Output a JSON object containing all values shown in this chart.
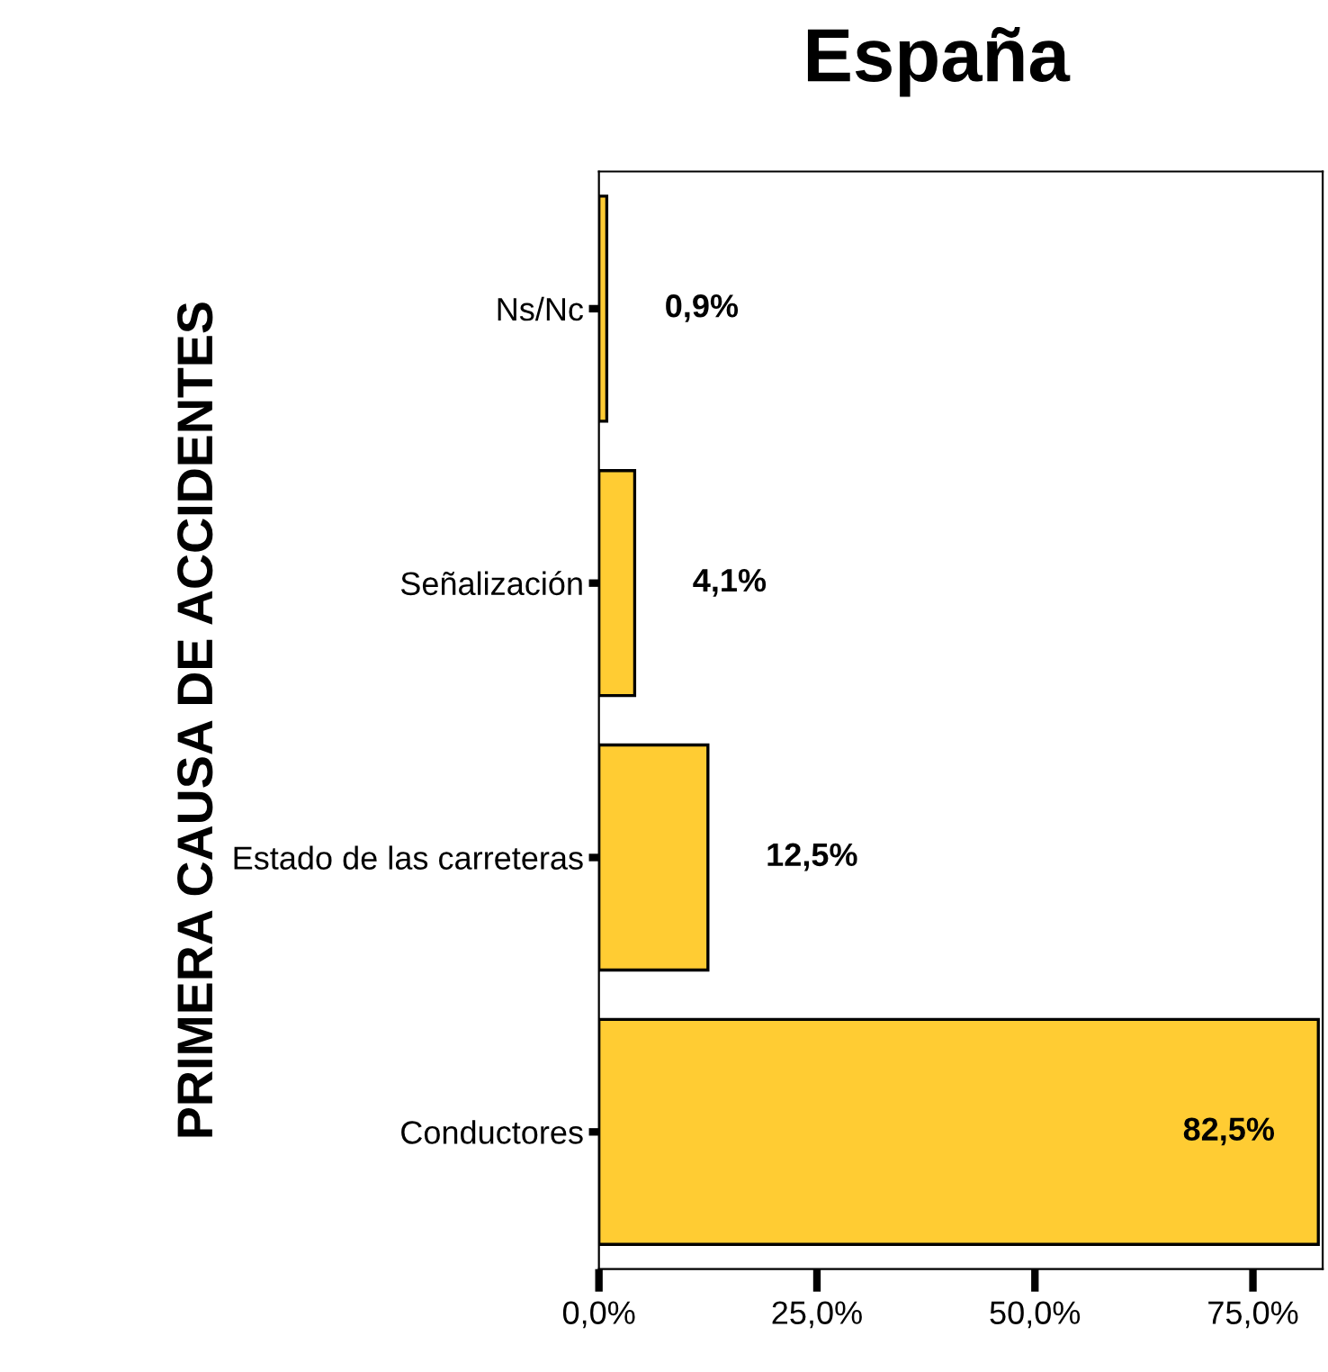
{
  "chart_data": {
    "type": "bar",
    "orientation": "horizontal",
    "title": "España",
    "ylabel": "PRIMERA CAUSA DE ACCIDENTES",
    "categories": [
      "Ns/Nc",
      "Señalización",
      "Estado de las carreteras",
      "Conductores"
    ],
    "values": [
      0.9,
      4.1,
      12.5,
      82.5
    ],
    "value_labels": [
      "0,9%",
      "4,1%",
      "12,5%",
      "82,5%"
    ],
    "color": "#ffcc33",
    "xlim": [
      0,
      83
    ],
    "xticks": [
      {
        "value": 0,
        "label": "0,0%"
      },
      {
        "value": 25,
        "label": "25,0%"
      },
      {
        "value": 50,
        "label": "50,0%"
      },
      {
        "value": 75,
        "label": "75,0%"
      }
    ],
    "grid": false,
    "legend": false
  }
}
